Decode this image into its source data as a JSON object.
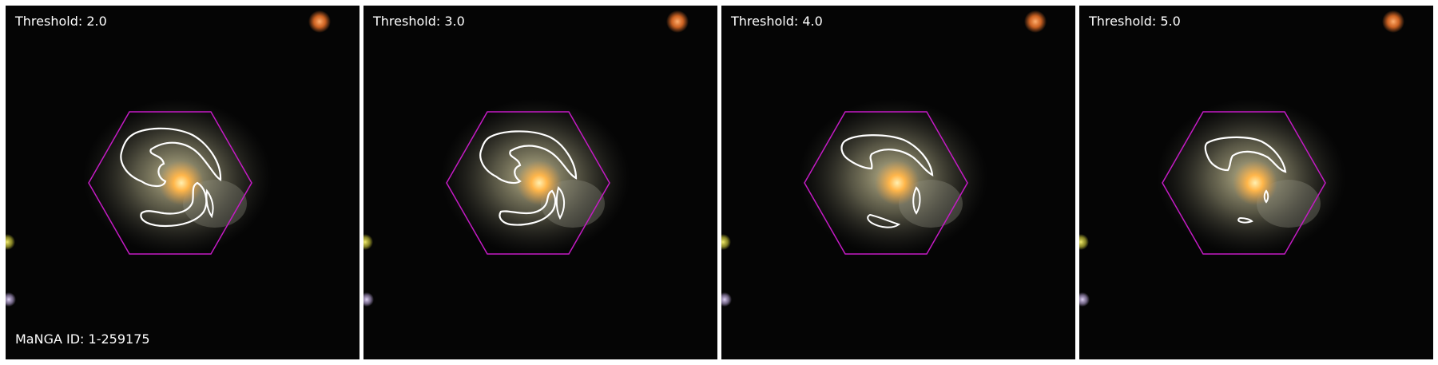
{
  "figure": {
    "manga_id_label": "MaNGA ID: 1-259175",
    "colors": {
      "background": "#050505",
      "hexagon": "#c51bc5",
      "contour": "#ffffff",
      "galaxy_core": "#ffb64a",
      "galaxy_disk": "#b8b084",
      "star_orange": "#ff7a2a",
      "star_yellow": "#d7d33a",
      "star_violet": "#b7a3d6"
    },
    "panels": [
      {
        "threshold_label": "Threshold: 2.0"
      },
      {
        "threshold_label": "Threshold: 3.0"
      },
      {
        "threshold_label": "Threshold: 4.0"
      },
      {
        "threshold_label": "Threshold: 5.0"
      }
    ]
  }
}
